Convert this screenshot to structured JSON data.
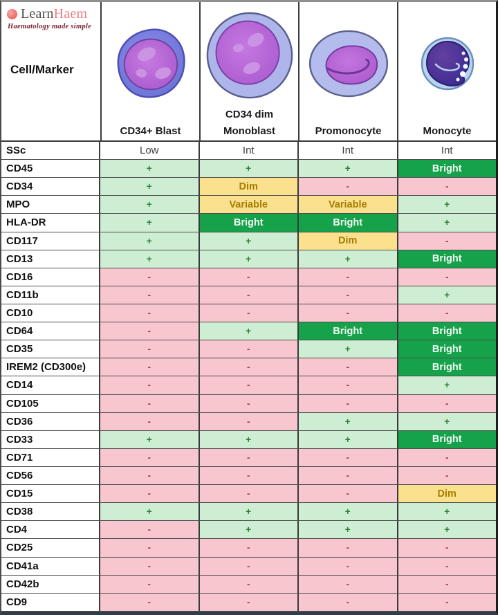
{
  "brand": {
    "logo_left": "Learn",
    "logo_right": "Haem",
    "tagline": "Haematology made simple"
  },
  "palette": {
    "plain-bg": "#ffffff",
    "plain-text": "#3f3f3f",
    "pos-bg": "#cdeed2",
    "pos-text": "#2f7c3c",
    "neg-bg": "#f8c6ce",
    "neg-text": "#9b3c4d",
    "dim-bg": "#fbe18e",
    "dim-text": "#a57d00",
    "bright-bg": "#16a24a",
    "bright-text": "#f2faf4"
  },
  "table": {
    "corner_label": "Cell/Marker",
    "columns": [
      {
        "top_line": "",
        "name": "CD34+ Blast",
        "art": "cd34-blast-cell"
      },
      {
        "top_line": "CD34 dim",
        "name": "Monoblast",
        "art": "monoblast-cell"
      },
      {
        "top_line": "",
        "name": "Promonocyte",
        "art": "promonocyte-cell"
      },
      {
        "top_line": "",
        "name": "Monocyte",
        "art": "monocyte-cell"
      }
    ],
    "rows": [
      {
        "marker": "SSc",
        "values": [
          {
            "t": "Low",
            "s": "plain"
          },
          {
            "t": "Int",
            "s": "plain"
          },
          {
            "t": "Int",
            "s": "plain"
          },
          {
            "t": "Int",
            "s": "plain"
          }
        ]
      },
      {
        "marker": "CD45",
        "values": [
          {
            "t": "+",
            "s": "pos"
          },
          {
            "t": "+",
            "s": "pos"
          },
          {
            "t": "+",
            "s": "pos"
          },
          {
            "t": "Bright",
            "s": "bright"
          }
        ]
      },
      {
        "marker": "CD34",
        "values": [
          {
            "t": "+",
            "s": "pos"
          },
          {
            "t": "Dim",
            "s": "dim"
          },
          {
            "t": "-",
            "s": "neg"
          },
          {
            "t": "-",
            "s": "neg"
          }
        ]
      },
      {
        "marker": "MPO",
        "values": [
          {
            "t": "+",
            "s": "pos"
          },
          {
            "t": "Variable",
            "s": "dim"
          },
          {
            "t": "Variable",
            "s": "dim"
          },
          {
            "t": "+",
            "s": "pos"
          }
        ]
      },
      {
        "marker": "HLA-DR",
        "values": [
          {
            "t": "+",
            "s": "pos"
          },
          {
            "t": "Bright",
            "s": "bright"
          },
          {
            "t": "Bright",
            "s": "bright"
          },
          {
            "t": "+",
            "s": "pos"
          }
        ]
      },
      {
        "marker": "CD117",
        "values": [
          {
            "t": "+",
            "s": "pos"
          },
          {
            "t": "+",
            "s": "pos"
          },
          {
            "t": "Dim",
            "s": "dim"
          },
          {
            "t": "-",
            "s": "neg"
          }
        ]
      },
      {
        "marker": "CD13",
        "values": [
          {
            "t": "+",
            "s": "pos"
          },
          {
            "t": "+",
            "s": "pos"
          },
          {
            "t": "+",
            "s": "pos"
          },
          {
            "t": "Bright",
            "s": "bright"
          }
        ]
      },
      {
        "marker": "CD16",
        "values": [
          {
            "t": "-",
            "s": "neg"
          },
          {
            "t": "-",
            "s": "neg"
          },
          {
            "t": "-",
            "s": "neg"
          },
          {
            "t": "-",
            "s": "neg"
          }
        ]
      },
      {
        "marker": "CD11b",
        "values": [
          {
            "t": "-",
            "s": "neg"
          },
          {
            "t": "-",
            "s": "neg"
          },
          {
            "t": "-",
            "s": "neg"
          },
          {
            "t": "+",
            "s": "pos"
          }
        ]
      },
      {
        "marker": "CD10",
        "values": [
          {
            "t": "-",
            "s": "neg"
          },
          {
            "t": "-",
            "s": "neg"
          },
          {
            "t": "-",
            "s": "neg"
          },
          {
            "t": "-",
            "s": "neg"
          }
        ]
      },
      {
        "marker": "CD64",
        "values": [
          {
            "t": "-",
            "s": "neg"
          },
          {
            "t": "+",
            "s": "pos"
          },
          {
            "t": "Bright",
            "s": "bright"
          },
          {
            "t": "Bright",
            "s": "bright"
          }
        ]
      },
      {
        "marker": "CD35",
        "values": [
          {
            "t": "-",
            "s": "neg"
          },
          {
            "t": "-",
            "s": "neg"
          },
          {
            "t": "+",
            "s": "pos"
          },
          {
            "t": "Bright",
            "s": "bright"
          }
        ]
      },
      {
        "marker": "IREM2 (CD300e)",
        "values": [
          {
            "t": "-",
            "s": "neg"
          },
          {
            "t": "-",
            "s": "neg"
          },
          {
            "t": "-",
            "s": "neg"
          },
          {
            "t": "Bright",
            "s": "bright"
          }
        ]
      },
      {
        "marker": "CD14",
        "values": [
          {
            "t": "-",
            "s": "neg"
          },
          {
            "t": "-",
            "s": "neg"
          },
          {
            "t": "-",
            "s": "neg"
          },
          {
            "t": "+",
            "s": "pos"
          }
        ]
      },
      {
        "marker": "CD105",
        "values": [
          {
            "t": "-",
            "s": "neg"
          },
          {
            "t": "-",
            "s": "neg"
          },
          {
            "t": "-",
            "s": "neg"
          },
          {
            "t": "-",
            "s": "neg"
          }
        ]
      },
      {
        "marker": "CD36",
        "values": [
          {
            "t": "-",
            "s": "neg"
          },
          {
            "t": "-",
            "s": "neg"
          },
          {
            "t": "+",
            "s": "pos"
          },
          {
            "t": "+",
            "s": "pos"
          }
        ]
      },
      {
        "marker": "CD33",
        "values": [
          {
            "t": "+",
            "s": "pos"
          },
          {
            "t": "+",
            "s": "pos"
          },
          {
            "t": "+",
            "s": "pos"
          },
          {
            "t": "Bright",
            "s": "bright"
          }
        ]
      },
      {
        "marker": "CD71",
        "values": [
          {
            "t": "-",
            "s": "neg"
          },
          {
            "t": "-",
            "s": "neg"
          },
          {
            "t": "-",
            "s": "neg"
          },
          {
            "t": "-",
            "s": "neg"
          }
        ]
      },
      {
        "marker": "CD56",
        "values": [
          {
            "t": "-",
            "s": "neg"
          },
          {
            "t": "-",
            "s": "neg"
          },
          {
            "t": "-",
            "s": "neg"
          },
          {
            "t": "-",
            "s": "neg"
          }
        ]
      },
      {
        "marker": "CD15",
        "values": [
          {
            "t": "-",
            "s": "neg"
          },
          {
            "t": "-",
            "s": "neg"
          },
          {
            "t": "-",
            "s": "neg"
          },
          {
            "t": "Dim",
            "s": "dim"
          }
        ]
      },
      {
        "marker": "CD38",
        "values": [
          {
            "t": "+",
            "s": "pos"
          },
          {
            "t": "+",
            "s": "pos"
          },
          {
            "t": "+",
            "s": "pos"
          },
          {
            "t": "+",
            "s": "pos"
          }
        ]
      },
      {
        "marker": "CD4",
        "values": [
          {
            "t": "-",
            "s": "neg"
          },
          {
            "t": "+",
            "s": "pos"
          },
          {
            "t": "+",
            "s": "pos"
          },
          {
            "t": "+",
            "s": "pos"
          }
        ]
      },
      {
        "marker": "CD25",
        "values": [
          {
            "t": "-",
            "s": "neg"
          },
          {
            "t": "-",
            "s": "neg"
          },
          {
            "t": "-",
            "s": "neg"
          },
          {
            "t": "-",
            "s": "neg"
          }
        ]
      },
      {
        "marker": "CD41a",
        "values": [
          {
            "t": "-",
            "s": "neg"
          },
          {
            "t": "-",
            "s": "neg"
          },
          {
            "t": "-",
            "s": "neg"
          },
          {
            "t": "-",
            "s": "neg"
          }
        ]
      },
      {
        "marker": "CD42b",
        "values": [
          {
            "t": "-",
            "s": "neg"
          },
          {
            "t": "-",
            "s": "neg"
          },
          {
            "t": "-",
            "s": "neg"
          },
          {
            "t": "-",
            "s": "neg"
          }
        ]
      },
      {
        "marker": "CD9",
        "values": [
          {
            "t": "-",
            "s": "neg"
          },
          {
            "t": "-",
            "s": "neg"
          },
          {
            "t": "-",
            "s": "neg"
          },
          {
            "t": "-",
            "s": "neg"
          }
        ]
      }
    ]
  }
}
